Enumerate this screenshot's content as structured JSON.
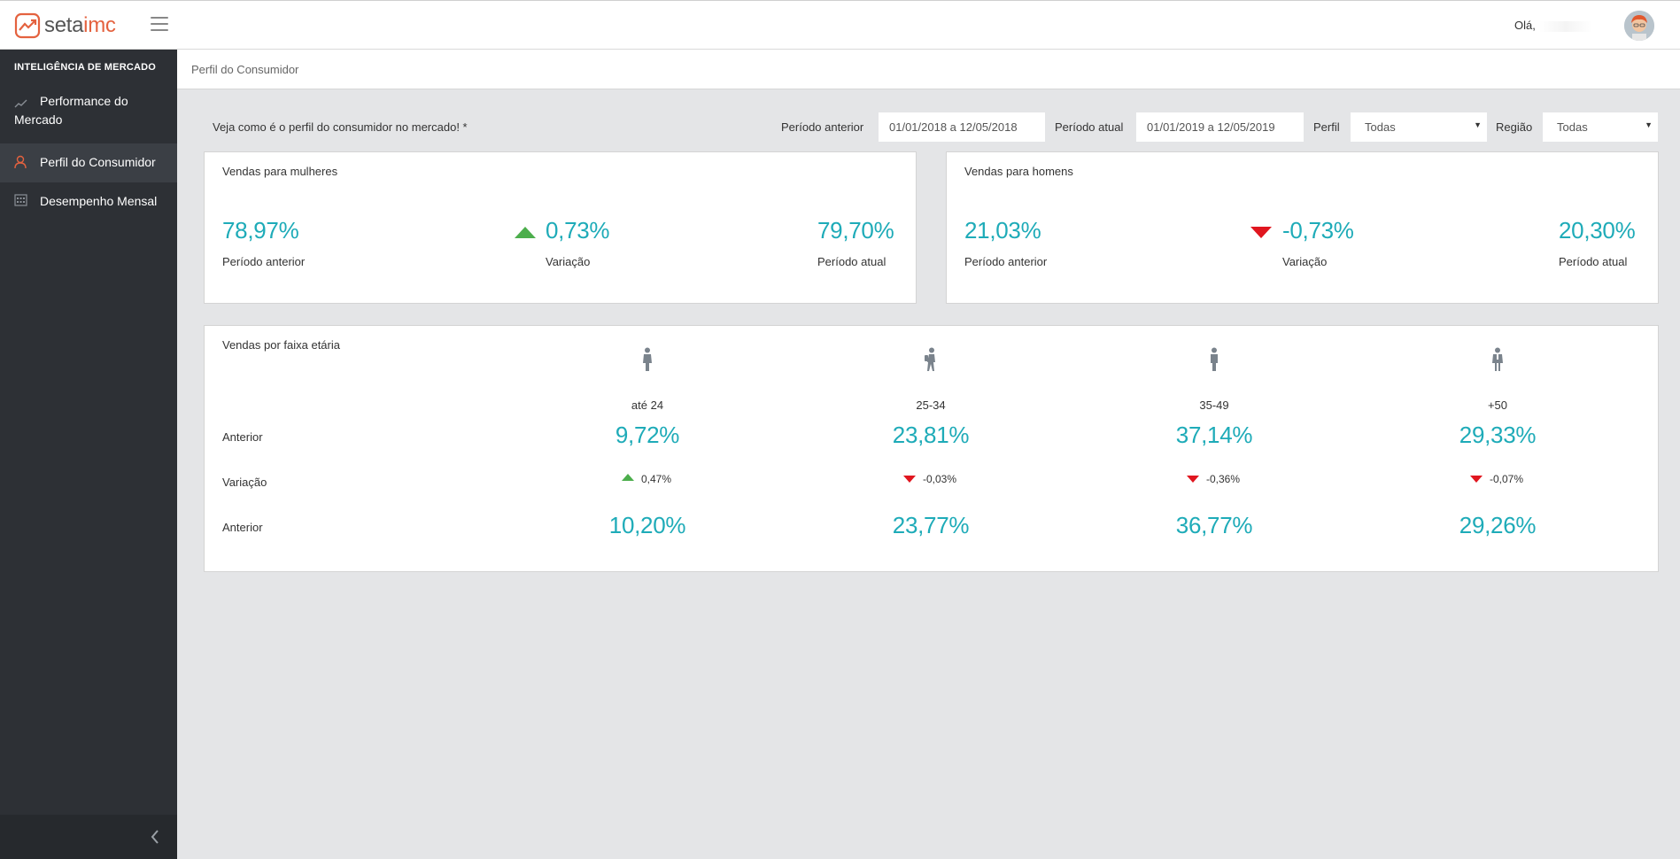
{
  "app": {
    "logo_text_a": "seta",
    "logo_text_b": "imc",
    "greeting": "Olá,",
    "colors": {
      "accent": "#1eabb8",
      "brand": "#e4623f",
      "up": "#4cae4c",
      "down": "#e0161f",
      "sidebar": "#2d3035"
    }
  },
  "sidebar": {
    "section_title": "INTELIGÊNCIA DE MERCADO",
    "items": [
      {
        "label": "Performance do Mercado",
        "icon": "line-chart-icon"
      },
      {
        "label": "Perfil do Consumidor",
        "icon": "user-icon",
        "active": true
      },
      {
        "label": "Desempenho Mensal",
        "icon": "calendar-icon"
      }
    ]
  },
  "breadcrumb": "Perfil do Consumidor",
  "filters": {
    "intro": "Veja como é o perfil do consumidor no mercado! *",
    "prev_label": "Período anterior",
    "prev_value": "01/01/2018 a 12/05/2018",
    "curr_label": "Período atual",
    "curr_value": "01/01/2019 a 12/05/2019",
    "perfil_label": "Perfil",
    "perfil_value": "Todas",
    "regiao_label": "Região",
    "regiao_value": "Todas"
  },
  "women": {
    "title": "Vendas para mulheres",
    "prev": "78,97%",
    "prev_label": "Período anterior",
    "var": "0,73%",
    "var_label": "Variação",
    "var_direction": "up",
    "curr": "79,70%",
    "curr_label": "Período atual"
  },
  "men": {
    "title": "Vendas para homens",
    "prev": "21,03%",
    "prev_label": "Período anterior",
    "var": "-0,73%",
    "var_label": "Variação",
    "var_direction": "down",
    "curr": "20,30%",
    "curr_label": "Período atual"
  },
  "age": {
    "title": "Vendas por faixa etária",
    "row_labels": [
      "Anterior",
      "Variação",
      "Anterior"
    ],
    "groups": [
      {
        "label": "até 24",
        "icon": "child-figure-icon",
        "prev": "9,72%",
        "var": "0,47%",
        "direction": "up",
        "curr": "10,20%"
      },
      {
        "label": "25-34",
        "icon": "hiker-figure-icon",
        "prev": "23,81%",
        "var": "-0,03%",
        "direction": "down",
        "curr": "23,77%"
      },
      {
        "label": "35-49",
        "icon": "adult-figure-icon",
        "prev": "37,14%",
        "var": "-0,36%",
        "direction": "down",
        "curr": "36,77%"
      },
      {
        "label": "+50",
        "icon": "senior-figure-icon",
        "prev": "29,33%",
        "var": "-0,07%",
        "direction": "down",
        "curr": "29,26%"
      }
    ]
  }
}
